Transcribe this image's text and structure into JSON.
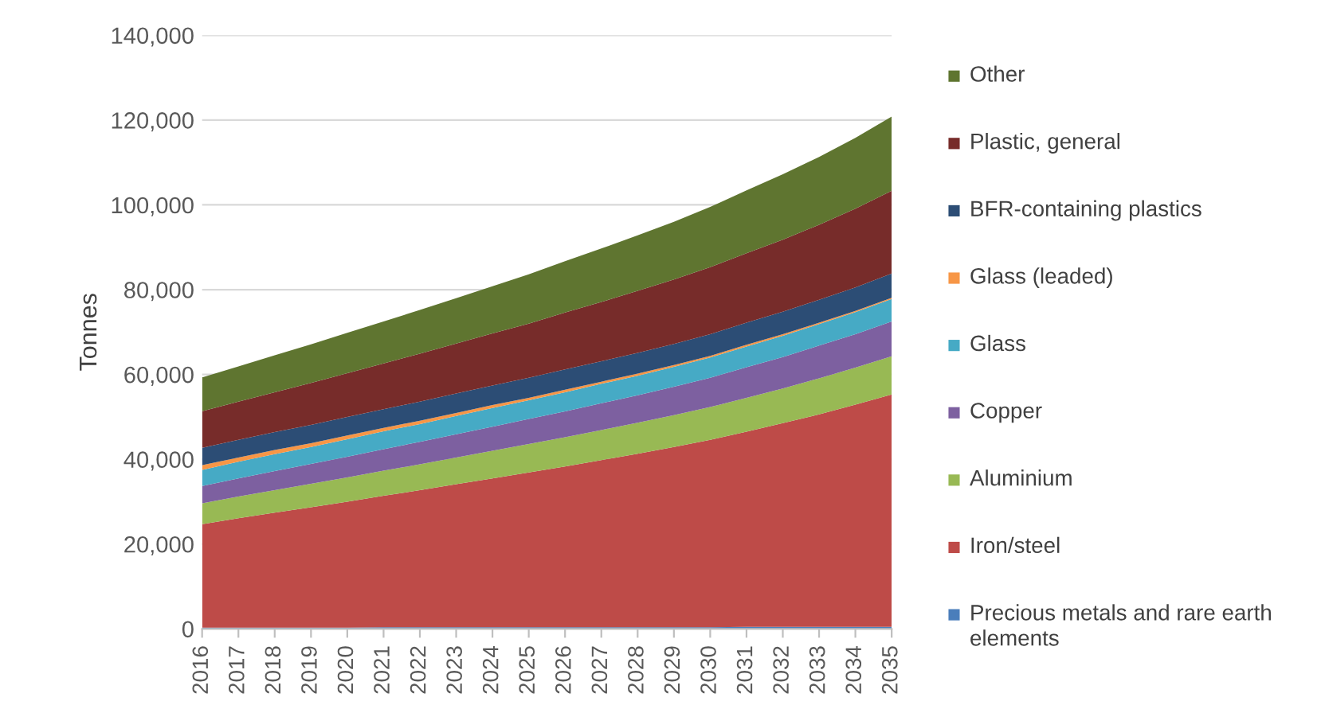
{
  "chart_data": {
    "type": "area",
    "stacked": true,
    "ylabel": "Tonnes",
    "categories": [
      "2016",
      "2017",
      "2018",
      "2019",
      "2020",
      "2021",
      "2022",
      "2023",
      "2024",
      "2025",
      "2026",
      "2027",
      "2028",
      "2029",
      "2030",
      "2031",
      "2032",
      "2033",
      "2034",
      "2035"
    ],
    "ylim": [
      0,
      140000
    ],
    "yticks": [
      {
        "value": 0,
        "label": "0"
      },
      {
        "value": 20000,
        "label": "20,000"
      },
      {
        "value": 40000,
        "label": "40,000"
      },
      {
        "value": 60000,
        "label": "60,000"
      },
      {
        "value": 80000,
        "label": "80,000"
      },
      {
        "value": 100000,
        "label": "100,000"
      },
      {
        "value": 120000,
        "label": "120,000"
      },
      {
        "value": 140000,
        "label": "140,000"
      }
    ],
    "grid": "y",
    "legend": "right",
    "series": [
      {
        "name": "Precious metals and rare earth elements",
        "color": "#4a7ebb",
        "values": [
          300,
          300,
          300,
          300,
          300,
          400,
          400,
          400,
          400,
          400,
          400,
          400,
          400,
          400,
          400,
          500,
          500,
          500,
          500,
          500
        ]
      },
      {
        "name": "Iron/steel",
        "color": "#be4b48",
        "values": [
          24400,
          25800,
          27100,
          28400,
          29700,
          31000,
          32300,
          33700,
          35100,
          36500,
          37900,
          39400,
          40900,
          42500,
          44200,
          46000,
          48000,
          50100,
          52400,
          54800
        ]
      },
      {
        "name": "Aluminium",
        "color": "#98b954",
        "values": [
          4900,
          5100,
          5300,
          5500,
          5700,
          5900,
          6100,
          6300,
          6500,
          6700,
          6900,
          7100,
          7300,
          7500,
          7700,
          8000,
          8200,
          8500,
          8700,
          9000
        ]
      },
      {
        "name": "Copper",
        "color": "#7d60a0",
        "values": [
          4100,
          4300,
          4500,
          4700,
          4900,
          5100,
          5300,
          5500,
          5700,
          5900,
          6100,
          6300,
          6500,
          6700,
          6900,
          7200,
          7400,
          7700,
          7900,
          8200
        ]
      },
      {
        "name": "Glass",
        "color": "#46aac5",
        "values": [
          3800,
          3900,
          4000,
          4000,
          4100,
          4200,
          4200,
          4300,
          4400,
          4400,
          4500,
          4600,
          4600,
          4700,
          4800,
          4900,
          5000,
          5100,
          5200,
          5300
        ]
      },
      {
        "name": "Glass (leaded)",
        "color": "#f79646",
        "values": [
          1100,
          1000,
          1000,
          900,
          900,
          800,
          800,
          700,
          700,
          600,
          600,
          500,
          500,
          400,
          400,
          400,
          400,
          300,
          300,
          300
        ]
      },
      {
        "name": "BFR-containing plastics",
        "color": "#2c4d75",
        "values": [
          4100,
          4200,
          4200,
          4300,
          4400,
          4400,
          4500,
          4600,
          4600,
          4700,
          4800,
          4800,
          4900,
          5000,
          5100,
          5200,
          5300,
          5400,
          5500,
          5700
        ]
      },
      {
        "name": "Plastic, general",
        "color": "#772c2a",
        "values": [
          8600,
          9000,
          9400,
          9900,
          10300,
          10800,
          11300,
          11800,
          12300,
          12800,
          13400,
          14000,
          14600,
          15200,
          15800,
          16400,
          17000,
          17700,
          18600,
          19500
        ]
      },
      {
        "name": "Other",
        "color": "#5f7530",
        "values": [
          8000,
          8300,
          8700,
          9100,
          9500,
          9900,
          10300,
          10700,
          11100,
          11600,
          12100,
          12600,
          13100,
          13600,
          14200,
          14800,
          15400,
          16000,
          16700,
          17500
        ]
      }
    ]
  }
}
